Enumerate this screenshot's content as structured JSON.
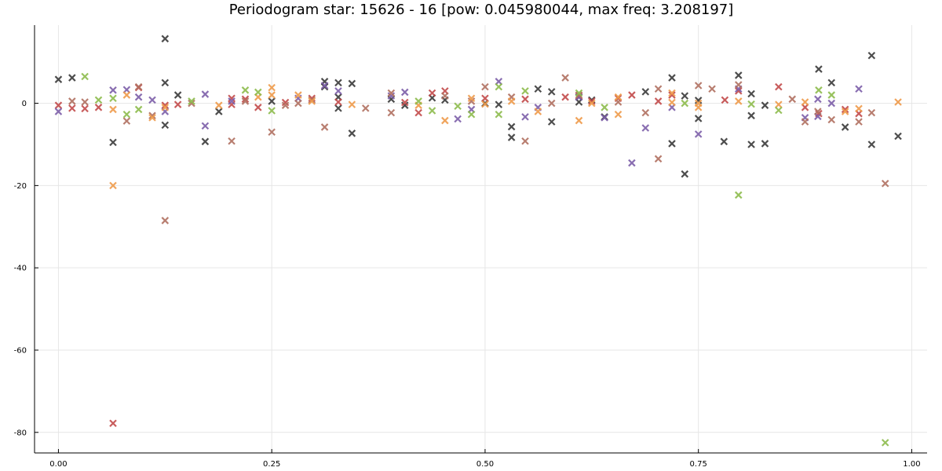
{
  "chart_data": {
    "type": "scatter",
    "title": "Periodogram star: 15626 - 16 [pow: 0.045980044, max freq: 3.208197]",
    "xlabel": "",
    "ylabel": "",
    "xlim": [
      -0.028,
      1.018
    ],
    "ylim": [
      -85,
      19
    ],
    "grid": true,
    "legend": "none",
    "marker": "x",
    "x_ticks": [
      0.0,
      0.25,
      0.5,
      0.75,
      1.0
    ],
    "x_tick_labels": [
      "0.00",
      "0.25",
      "0.50",
      "0.75",
      "1.00"
    ],
    "y_ticks": [
      0,
      -20,
      -40,
      -60,
      -80
    ],
    "y_tick_labels": [
      "0",
      "-20",
      "-40",
      "-60",
      "-80"
    ],
    "series": [
      {
        "color": "#3a3a3a",
        "points": [
          [
            0.0,
            5.8
          ],
          [
            0.016,
            6.2
          ],
          [
            0.064,
            -9.5
          ],
          [
            0.125,
            15.7
          ],
          [
            0.125,
            5.0
          ],
          [
            0.125,
            -5.3
          ],
          [
            0.14,
            2.0
          ],
          [
            0.172,
            -9.3
          ],
          [
            0.188,
            -2.0
          ],
          [
            0.25,
            0.5
          ],
          [
            0.312,
            5.3
          ],
          [
            0.312,
            4.0
          ],
          [
            0.328,
            5.0
          ],
          [
            0.328,
            1.5
          ],
          [
            0.328,
            -1.2
          ],
          [
            0.344,
            4.8
          ],
          [
            0.344,
            -7.3
          ],
          [
            0.39,
            1.0
          ],
          [
            0.406,
            -0.5
          ],
          [
            0.438,
            1.3
          ],
          [
            0.453,
            0.8
          ],
          [
            0.5,
            0.0
          ],
          [
            0.516,
            -0.3
          ],
          [
            0.531,
            -5.7
          ],
          [
            0.531,
            -8.3
          ],
          [
            0.562,
            3.5
          ],
          [
            0.578,
            2.8
          ],
          [
            0.578,
            -4.5
          ],
          [
            0.61,
            1.5
          ],
          [
            0.61,
            0.3
          ],
          [
            0.625,
            0.8
          ],
          [
            0.64,
            -3.3
          ],
          [
            0.688,
            2.8
          ],
          [
            0.719,
            6.2
          ],
          [
            0.719,
            -9.8
          ],
          [
            0.734,
            -17.2
          ],
          [
            0.734,
            1.8
          ],
          [
            0.75,
            0.7
          ],
          [
            0.75,
            -3.7
          ],
          [
            0.78,
            -9.3
          ],
          [
            0.797,
            6.8
          ],
          [
            0.812,
            2.3
          ],
          [
            0.812,
            -3.0
          ],
          [
            0.812,
            -10.0
          ],
          [
            0.828,
            -9.8
          ],
          [
            0.828,
            -0.5
          ],
          [
            0.891,
            8.3
          ],
          [
            0.906,
            5.0
          ],
          [
            0.922,
            -5.8
          ],
          [
            0.953,
            11.6
          ],
          [
            0.953,
            -10.0
          ],
          [
            0.984,
            -8.0
          ]
        ]
      },
      {
        "color": "#c24a4a",
        "points": [
          [
            0.0,
            -0.5
          ],
          [
            0.016,
            -1.2
          ],
          [
            0.031,
            -1.3
          ],
          [
            0.047,
            -1.0
          ],
          [
            0.064,
            -77.8
          ],
          [
            0.094,
            3.8
          ],
          [
            0.125,
            -0.5
          ],
          [
            0.14,
            -0.3
          ],
          [
            0.203,
            1.2
          ],
          [
            0.203,
            -0.3
          ],
          [
            0.219,
            1.0
          ],
          [
            0.234,
            -1.0
          ],
          [
            0.266,
            0.2
          ],
          [
            0.297,
            1.2
          ],
          [
            0.328,
            0.3
          ],
          [
            0.406,
            0.2
          ],
          [
            0.422,
            -2.3
          ],
          [
            0.438,
            2.5
          ],
          [
            0.453,
            3.0
          ],
          [
            0.5,
            1.2
          ],
          [
            0.547,
            1.0
          ],
          [
            0.594,
            1.5
          ],
          [
            0.61,
            1.8
          ],
          [
            0.625,
            0.5
          ],
          [
            0.656,
            1.2
          ],
          [
            0.672,
            2.0
          ],
          [
            0.703,
            0.5
          ],
          [
            0.719,
            2.0
          ],
          [
            0.781,
            0.8
          ],
          [
            0.797,
            3.0
          ],
          [
            0.844,
            4.0
          ],
          [
            0.875,
            -1.0
          ],
          [
            0.891,
            -2.5
          ],
          [
            0.922,
            -1.5
          ],
          [
            0.938,
            -2.5
          ]
        ]
      },
      {
        "color": "#7c5ea8",
        "points": [
          [
            0.0,
            -2.0
          ],
          [
            0.064,
            3.2
          ],
          [
            0.08,
            3.3
          ],
          [
            0.094,
            1.5
          ],
          [
            0.11,
            0.8
          ],
          [
            0.125,
            -2.0
          ],
          [
            0.172,
            2.2
          ],
          [
            0.172,
            -5.5
          ],
          [
            0.203,
            0.5
          ],
          [
            0.281,
            1.2
          ],
          [
            0.312,
            4.3
          ],
          [
            0.328,
            3.0
          ],
          [
            0.39,
            1.8
          ],
          [
            0.406,
            2.7
          ],
          [
            0.468,
            -3.8
          ],
          [
            0.484,
            -1.5
          ],
          [
            0.516,
            5.3
          ],
          [
            0.547,
            -3.3
          ],
          [
            0.562,
            -1.0
          ],
          [
            0.61,
            1.5
          ],
          [
            0.64,
            -3.5
          ],
          [
            0.672,
            -14.5
          ],
          [
            0.688,
            -6.0
          ],
          [
            0.719,
            -1.0
          ],
          [
            0.75,
            -7.5
          ],
          [
            0.797,
            3.5
          ],
          [
            0.875,
            -3.5
          ],
          [
            0.89,
            -3.2
          ],
          [
            0.89,
            1.0
          ],
          [
            0.906,
            0.0
          ],
          [
            0.938,
            3.5
          ]
        ]
      },
      {
        "color": "#b07060",
        "points": [
          [
            0.016,
            0.5
          ],
          [
            0.031,
            0.3
          ],
          [
            0.08,
            -4.3
          ],
          [
            0.094,
            4.0
          ],
          [
            0.11,
            -3.0
          ],
          [
            0.125,
            -28.5
          ],
          [
            0.156,
            0.0
          ],
          [
            0.203,
            -9.2
          ],
          [
            0.219,
            0.5
          ],
          [
            0.25,
            -7.0
          ],
          [
            0.266,
            -0.5
          ],
          [
            0.281,
            0.0
          ],
          [
            0.297,
            0.8
          ],
          [
            0.312,
            -5.8
          ],
          [
            0.36,
            -1.2
          ],
          [
            0.39,
            2.5
          ],
          [
            0.39,
            -2.3
          ],
          [
            0.453,
            1.8
          ],
          [
            0.484,
            0.5
          ],
          [
            0.5,
            4.0
          ],
          [
            0.531,
            1.5
          ],
          [
            0.547,
            -9.2
          ],
          [
            0.578,
            0.0
          ],
          [
            0.594,
            6.2
          ],
          [
            0.61,
            2.0
          ],
          [
            0.656,
            0.3
          ],
          [
            0.688,
            -2.3
          ],
          [
            0.703,
            -13.5
          ],
          [
            0.703,
            3.5
          ],
          [
            0.75,
            4.3
          ],
          [
            0.766,
            3.5
          ],
          [
            0.797,
            4.5
          ],
          [
            0.86,
            1.0
          ],
          [
            0.875,
            -4.5
          ],
          [
            0.89,
            -2.0
          ],
          [
            0.906,
            -4.0
          ],
          [
            0.938,
            -4.5
          ],
          [
            0.953,
            -2.3
          ],
          [
            0.969,
            -19.5
          ]
        ]
      },
      {
        "color": "#ee9a4a",
        "points": [
          [
            0.064,
            -20.0
          ],
          [
            0.064,
            -1.5
          ],
          [
            0.08,
            2.0
          ],
          [
            0.11,
            -3.5
          ],
          [
            0.125,
            -1.0
          ],
          [
            0.188,
            -0.5
          ],
          [
            0.234,
            1.5
          ],
          [
            0.25,
            3.8
          ],
          [
            0.25,
            2.0
          ],
          [
            0.281,
            2.0
          ],
          [
            0.297,
            0.5
          ],
          [
            0.344,
            -0.3
          ],
          [
            0.422,
            -0.5
          ],
          [
            0.453,
            -4.2
          ],
          [
            0.484,
            1.2
          ],
          [
            0.5,
            -0.2
          ],
          [
            0.531,
            0.5
          ],
          [
            0.562,
            -2.0
          ],
          [
            0.61,
            -4.2
          ],
          [
            0.625,
            0.0
          ],
          [
            0.656,
            1.5
          ],
          [
            0.656,
            -2.7
          ],
          [
            0.719,
            2.5
          ],
          [
            0.719,
            0.2
          ],
          [
            0.75,
            0.0
          ],
          [
            0.75,
            -1.0
          ],
          [
            0.797,
            0.5
          ],
          [
            0.844,
            -0.3
          ],
          [
            0.875,
            0.3
          ],
          [
            0.922,
            -2.0
          ],
          [
            0.938,
            -1.3
          ],
          [
            0.984,
            0.3
          ]
        ]
      },
      {
        "color": "#8dbb4c",
        "points": [
          [
            0.031,
            6.5
          ],
          [
            0.047,
            0.8
          ],
          [
            0.064,
            1.2
          ],
          [
            0.08,
            -2.7
          ],
          [
            0.094,
            -1.5
          ],
          [
            0.156,
            0.5
          ],
          [
            0.219,
            3.2
          ],
          [
            0.234,
            2.7
          ],
          [
            0.25,
            -1.8
          ],
          [
            0.422,
            0.5
          ],
          [
            0.438,
            -1.8
          ],
          [
            0.468,
            -0.7
          ],
          [
            0.484,
            -2.7
          ],
          [
            0.516,
            4.0
          ],
          [
            0.516,
            -2.7
          ],
          [
            0.547,
            3.0
          ],
          [
            0.61,
            2.5
          ],
          [
            0.64,
            -1.0
          ],
          [
            0.734,
            0.0
          ],
          [
            0.797,
            -22.3
          ],
          [
            0.812,
            -0.2
          ],
          [
            0.844,
            -1.7
          ],
          [
            0.891,
            3.2
          ],
          [
            0.906,
            2.0
          ],
          [
            0.969,
            -82.5
          ]
        ]
      }
    ]
  }
}
